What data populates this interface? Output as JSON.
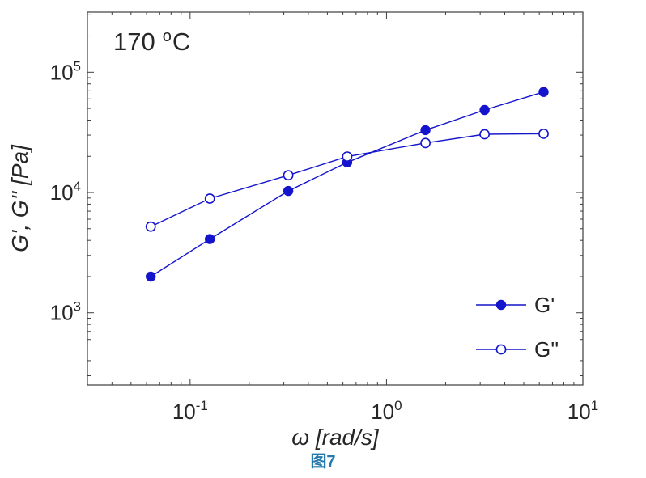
{
  "chart_data": {
    "type": "line",
    "scale": "log-log",
    "x": [
      0.063,
      0.126,
      0.316,
      0.631,
      1.58,
      3.16,
      6.31
    ],
    "series": [
      {
        "name": "G'",
        "marker": "filled-circle",
        "values": [
          2000,
          4100,
          10300,
          17800,
          33000,
          48500,
          68500
        ]
      },
      {
        "name": "G''",
        "marker": "open-circle",
        "values": [
          5200,
          8900,
          13900,
          19900,
          25800,
          30500,
          30800
        ]
      }
    ],
    "title": "",
    "xlabel": "ω [rad/s]",
    "ylabel": "G', G'' [Pa]",
    "xlim": [
      0.03,
      10
    ],
    "ylim": [
      251,
      316000
    ],
    "xticks": [
      0.1,
      1,
      10
    ],
    "yticks": [
      1000,
      10000,
      100000
    ],
    "grid": false,
    "annotation": "170 °C",
    "legend": {
      "entries": [
        "G'",
        "G''"
      ],
      "position": "lower-right",
      "box": false
    },
    "line_color": "#1414cc",
    "axis_color": "#3d3d3d",
    "text_color": "#262626"
  },
  "caption": {
    "text": "图7",
    "color": "#2579ad"
  }
}
